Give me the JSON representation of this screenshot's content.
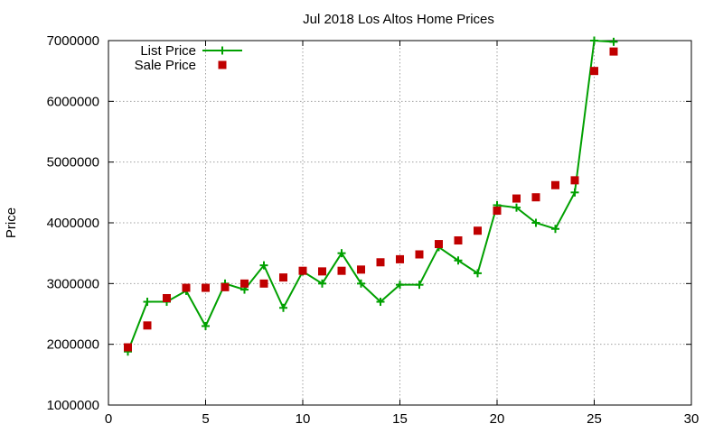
{
  "chart_data": {
    "type": "line",
    "title": "Jul 2018 Los Altos Home Prices",
    "xlabel": "",
    "ylabel": "Price",
    "xlim": [
      0,
      30
    ],
    "ylim": [
      1000000,
      7000000
    ],
    "xticks": [
      "0",
      "5",
      "10",
      "15",
      "20",
      "25",
      "30"
    ],
    "yticks": [
      "1000000",
      "2000000",
      "3000000",
      "4000000",
      "5000000",
      "6000000",
      "7000000"
    ],
    "grid": true,
    "legend_position": "top-left",
    "series": [
      {
        "name": "List Price",
        "style": "line+cross",
        "color": "#00a000",
        "x": [
          1,
          2,
          3,
          4,
          5,
          6,
          7,
          8,
          9,
          10,
          11,
          12,
          13,
          14,
          15,
          16,
          17,
          18,
          19,
          20,
          21,
          22,
          23,
          24,
          25,
          26
        ],
        "values": [
          1880000,
          2700000,
          2700000,
          2880000,
          2300000,
          3000000,
          2900000,
          3300000,
          2600000,
          3200000,
          3000000,
          3500000,
          3000000,
          2700000,
          2980000,
          2980000,
          3600000,
          3380000,
          3170000,
          4290000,
          4250000,
          4000000,
          3900000,
          4500000,
          7000000,
          6980000
        ]
      },
      {
        "name": "Sale Price",
        "style": "square",
        "color": "#c00000",
        "x": [
          1,
          2,
          3,
          4,
          5,
          6,
          7,
          8,
          9,
          10,
          11,
          12,
          13,
          14,
          15,
          16,
          17,
          18,
          19,
          20,
          21,
          22,
          23,
          24,
          25,
          26
        ],
        "values": [
          1950000,
          2310000,
          2760000,
          2930000,
          2930000,
          2940000,
          3000000,
          3000000,
          3100000,
          3210000,
          3200000,
          3210000,
          3230000,
          3350000,
          3400000,
          3480000,
          3650000,
          3710000,
          3870000,
          4200000,
          4400000,
          4420000,
          4620000,
          4700000,
          6500000,
          6820000
        ]
      }
    ]
  }
}
